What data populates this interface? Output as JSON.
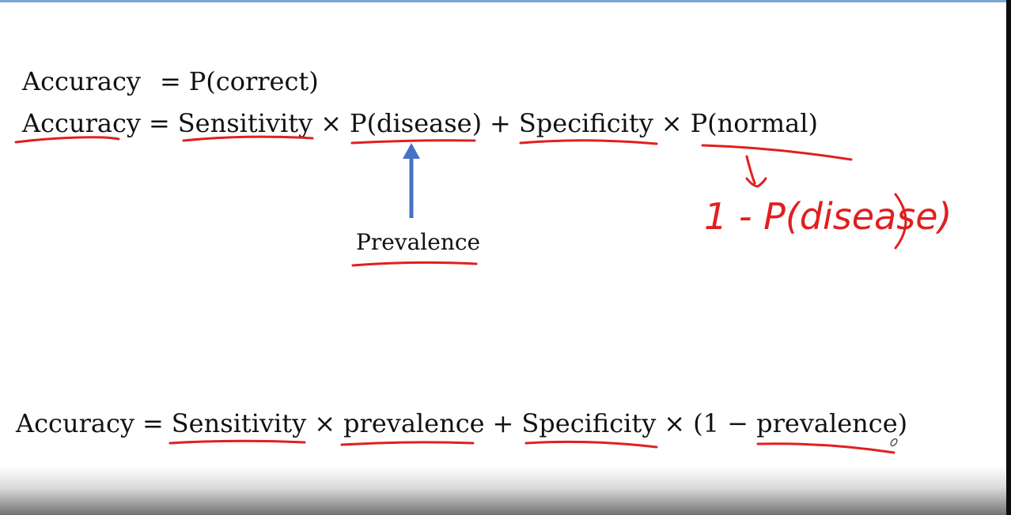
{
  "eq1": {
    "lhs": "Accuracy",
    "eq": "=",
    "rhs": "P(correct)"
  },
  "eq2": {
    "lhs": "Accuracy",
    "eq": "=",
    "t1": "Sensitivity",
    "op1": "×",
    "t2": "P(disease)",
    "op2": "+",
    "t3": "Specificity",
    "op3": "×",
    "t4": "P(normal)"
  },
  "prevalence_label": "Prevalence",
  "handwritten_note": "1 - P(disease)",
  "eq3": {
    "lhs": "Accuracy",
    "eq": "=",
    "t1": "Sensitivity",
    "op1": "×",
    "t2": "prevalence",
    "op2": "+",
    "t3": "Specificity",
    "op3": "×",
    "t4_open": "(1 −",
    "t4": "prevalence",
    "t4_close": ")"
  },
  "colors": {
    "ink": "#111111",
    "annotation_red": "#e0201f",
    "arrow_blue": "#4472c4",
    "frame_top": "#7aa7d8"
  }
}
